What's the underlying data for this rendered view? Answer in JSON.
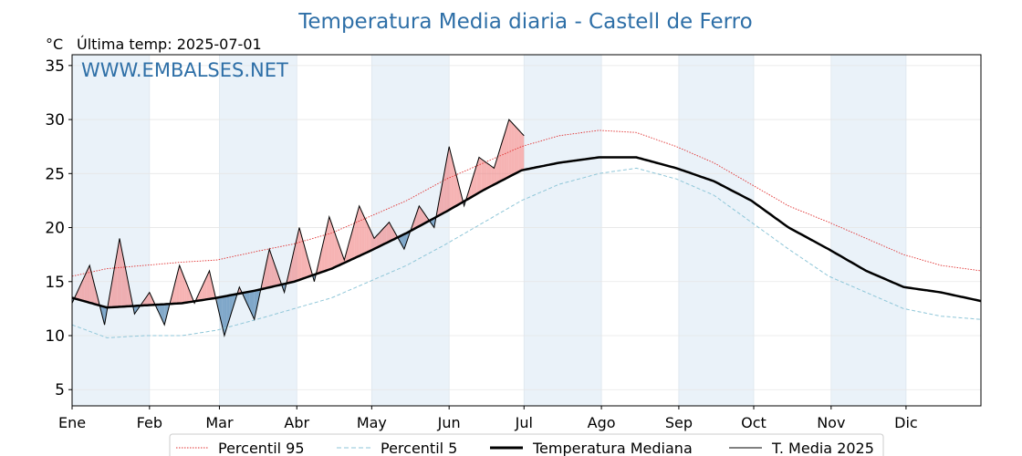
{
  "chart_data": {
    "type": "line",
    "title": "Temperatura Media diaria - Castell de Ferro",
    "unit_label": "°C",
    "last_temp_label": "Última temp: 2025-07-01",
    "watermark": "WWW.EMBALSES.NET",
    "xlabel": "",
    "ylabel": "",
    "ylim": [
      3.5,
      36
    ],
    "yticks": [
      5,
      10,
      15,
      20,
      25,
      30,
      35
    ],
    "months": [
      "Ene",
      "Feb",
      "Mar",
      "Abr",
      "May",
      "Jun",
      "Jul",
      "Ago",
      "Sep",
      "Oct",
      "Nov",
      "Dic"
    ],
    "month_days": [
      31,
      28,
      31,
      30,
      31,
      30,
      31,
      31,
      30,
      31,
      30,
      31
    ],
    "grid": true,
    "legend_position": "bottom",
    "colors": {
      "title": "#2e6fa7",
      "p95": "#e03030",
      "p5": "#8ec6d8",
      "median": "#000000",
      "current": "#000000",
      "above_fill": "#f08080",
      "below_fill": "#5b8db8",
      "band_shade": "#eaf2f9"
    },
    "series": [
      {
        "name": "Percentil 95",
        "style": "dotted-red",
        "x": [
          1,
          15,
          30,
          45,
          59,
          75,
          90,
          105,
          120,
          135,
          151,
          166,
          181,
          196,
          212,
          227,
          243,
          258,
          273,
          288,
          304,
          319,
          334,
          349,
          365
        ],
        "values": [
          15.5,
          16.2,
          16.5,
          16.8,
          17.0,
          17.8,
          18.5,
          19.5,
          21.0,
          22.5,
          24.5,
          26.0,
          27.5,
          28.5,
          29.0,
          28.8,
          27.5,
          26.0,
          24.0,
          22.0,
          20.5,
          19.0,
          17.5,
          16.5,
          16.0
        ]
      },
      {
        "name": "Percentil 5",
        "style": "dashed-lightblue",
        "x": [
          1,
          15,
          30,
          45,
          59,
          75,
          90,
          105,
          120,
          135,
          151,
          166,
          181,
          196,
          212,
          227,
          243,
          258,
          273,
          288,
          304,
          319,
          334,
          349,
          365
        ],
        "values": [
          11.0,
          9.8,
          10.0,
          10.0,
          10.5,
          11.5,
          12.5,
          13.5,
          15.0,
          16.5,
          18.5,
          20.5,
          22.5,
          24.0,
          25.0,
          25.5,
          24.5,
          23.0,
          20.5,
          18.0,
          15.5,
          14.0,
          12.5,
          11.8,
          11.5
        ]
      },
      {
        "name": "Temperatura Mediana",
        "style": "thick-black",
        "x": [
          1,
          15,
          30,
          45,
          59,
          75,
          90,
          105,
          120,
          135,
          151,
          166,
          181,
          196,
          212,
          227,
          243,
          258,
          273,
          288,
          304,
          319,
          334,
          349,
          365
        ],
        "values": [
          13.5,
          12.6,
          12.8,
          13.0,
          13.5,
          14.2,
          15.0,
          16.2,
          17.8,
          19.5,
          21.5,
          23.5,
          25.3,
          26.0,
          26.5,
          26.5,
          25.5,
          24.3,
          22.5,
          20.0,
          18.0,
          16.0,
          14.5,
          14.0,
          13.2
        ]
      },
      {
        "name": "T. Media 2025",
        "style": "thin-black",
        "x": [
          1,
          8,
          14,
          20,
          26,
          32,
          38,
          44,
          50,
          56,
          62,
          68,
          74,
          80,
          86,
          92,
          98,
          104,
          110,
          116,
          122,
          128,
          134,
          140,
          146,
          152,
          158,
          164,
          170,
          176,
          182
        ],
        "values": [
          13.0,
          16.5,
          11.0,
          19.0,
          12.0,
          14.0,
          11.0,
          16.5,
          13.0,
          16.0,
          10.0,
          14.5,
          11.5,
          18.0,
          14.0,
          20.0,
          15.0,
          21.0,
          17.0,
          22.0,
          19.0,
          20.5,
          18.0,
          22.0,
          20.0,
          27.5,
          22.0,
          26.5,
          25.5,
          30.0,
          28.5
        ]
      }
    ]
  }
}
